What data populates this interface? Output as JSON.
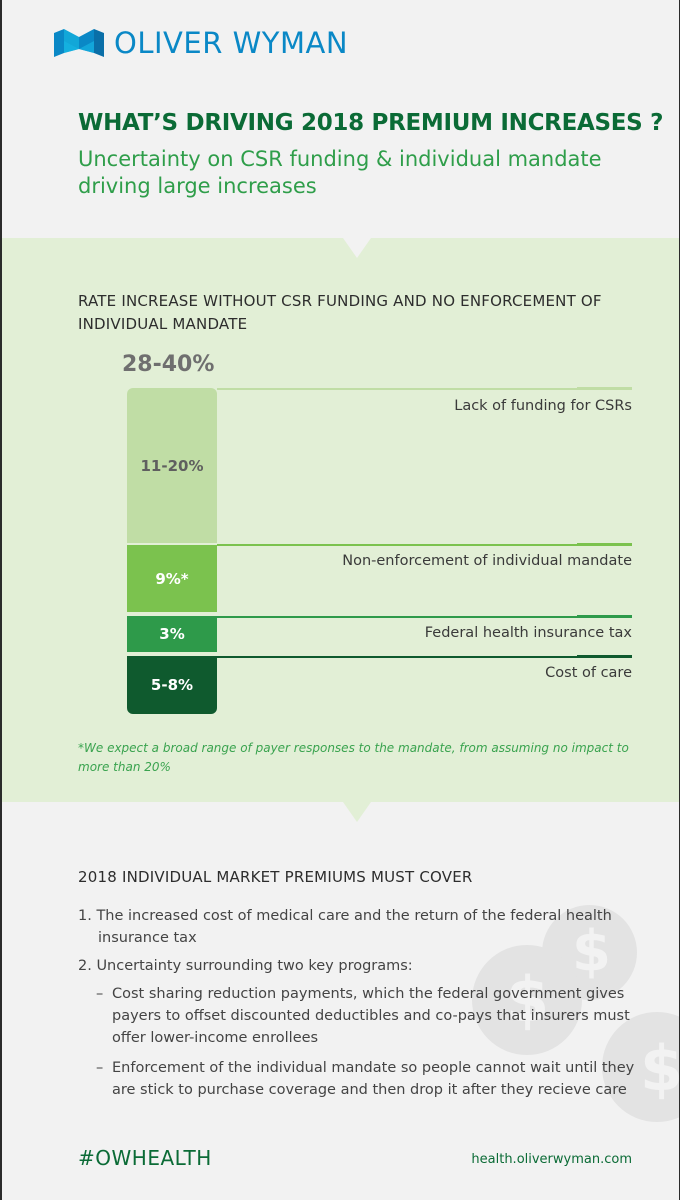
{
  "brand": {
    "name": "OLIVER WYMAN",
    "logo_icon": "oliver-wyman-logo-icon",
    "color": "#0a88c6"
  },
  "headline": "WHAT’S DRIVING 2018 PREMIUM INCREASES ?",
  "subheadline": "Uncertainty on CSR funding & individual mandate driving large increases",
  "rate_section": {
    "title": "RATE INCREASE WITHOUT CSR FUNDING AND NO ENFORCEMENT OF INDIVIDUAL MANDATE",
    "total": "28-40%",
    "footnote": "*We expect a broad range of payer responses to the mandate, from assuming no impact to more than 20%"
  },
  "chart_data": {
    "type": "bar",
    "stacked": true,
    "total_label": "28-40%",
    "segments": [
      {
        "label": "Lack of funding for CSRs",
        "value_label": "11-20%",
        "range": [
          11,
          20
        ],
        "color": "#c0dda5"
      },
      {
        "label": "Non-enforcement of individual mandate",
        "value_label": "9%*",
        "range": [
          9,
          9
        ],
        "color": "#7bc24e"
      },
      {
        "label": "Federal health insurance tax",
        "value_label": "3%",
        "range": [
          3,
          3
        ],
        "color": "#2e9a4a"
      },
      {
        "label": "Cost of care",
        "value_label": "5-8%",
        "range": [
          5,
          8
        ],
        "color": "#0f5a2e"
      }
    ]
  },
  "cover_section": {
    "title": "2018 INDIVIDUAL MARKET PREMIUMS MUST COVER",
    "item1_line1": "1. The increased cost of medical care and the return of the federal health",
    "item1_line2": "insurance tax",
    "item2": "2. Uncertainty surrounding two key programs:",
    "sub1_line1": "Cost sharing reduction payments, which the federal government gives",
    "sub1_line2": "payers to offset discounted deductibles and co-pays that insurers must",
    "sub1_line3": "offer lower-income enrollees",
    "sub2_line1": "Enforcement of the individual mandate so people cannot wait until they",
    "sub2_line2": "are stick to purchase coverage and then drop it after they recieve care",
    "dash": "–",
    "coin_glyph": "$"
  },
  "footer": {
    "hashtag": "#OWHEALTH",
    "url": "health.oliverwyman.com"
  }
}
